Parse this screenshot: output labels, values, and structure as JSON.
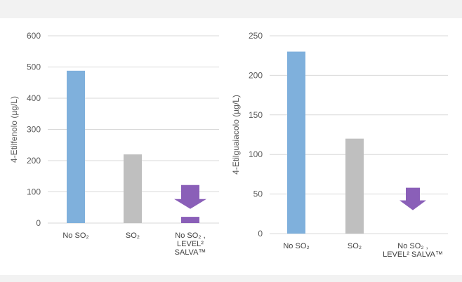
{
  "colors": {
    "no_so2": "#7fb0dc",
    "so2": "#bfbfbf",
    "arrow": "#8a5fb8"
  },
  "chart_data": [
    {
      "type": "bar",
      "ylabel": "4-Etilfenolo (µg/L)",
      "ylim": [
        0,
        600
      ],
      "yticks": [
        0,
        100,
        200,
        300,
        400,
        500,
        600
      ],
      "grid": true,
      "categories": [
        {
          "lines": [
            "No SO₂"
          ]
        },
        {
          "lines": [
            "SO₂"
          ]
        },
        {
          "lines": [
            "No SO₂ ,",
            "LEVEL² ",
            "SALVA™"
          ]
        }
      ],
      "values": [
        488,
        220,
        20
      ],
      "annotations": [
        {
          "type": "down-arrow",
          "category_index": 2
        }
      ]
    },
    {
      "type": "bar",
      "ylabel": "4-Etilguaiacolo (µg/L)",
      "ylim": [
        0,
        250
      ],
      "yticks": [
        0,
        50,
        100,
        150,
        200,
        250
      ],
      "grid": true,
      "categories": [
        {
          "lines": [
            "No  SO₂"
          ]
        },
        {
          "lines": [
            "SO₂"
          ]
        },
        {
          "lines": [
            "No SO₂ ,",
            "LEVEL² SALVA™"
          ]
        }
      ],
      "values": [
        230,
        120,
        null
      ],
      "annotations": [
        {
          "type": "down-arrow",
          "category_index": 2
        }
      ]
    }
  ]
}
